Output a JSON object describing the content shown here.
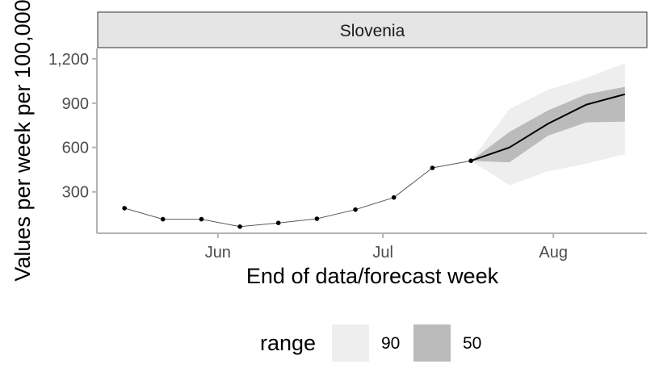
{
  "chart_data": {
    "type": "line",
    "facet": "Slovenia",
    "xlabel": "End of data/forecast week",
    "ylabel": "Values per week per 100,000",
    "x_ticks": [
      {
        "date": "2021-06-01",
        "label": "Jun"
      },
      {
        "date": "2021-07-01",
        "label": "Jul"
      },
      {
        "date": "2021-08-01",
        "label": "Aug"
      }
    ],
    "y_ticks": [
      {
        "value": 300,
        "label": "300"
      },
      {
        "value": 600,
        "label": "600"
      },
      {
        "value": 900,
        "label": "900"
      },
      {
        "value": 1200,
        "label": "1,200"
      }
    ],
    "xlim": [
      "2021-05-10",
      "2021-08-18"
    ],
    "ylim": [
      20,
      1270
    ],
    "grid": false,
    "observed": [
      {
        "date": "2021-05-15",
        "value": 190
      },
      {
        "date": "2021-05-22",
        "value": 115
      },
      {
        "date": "2021-05-29",
        "value": 115
      },
      {
        "date": "2021-06-05",
        "value": 65
      },
      {
        "date": "2021-06-12",
        "value": 90
      },
      {
        "date": "2021-06-19",
        "value": 118
      },
      {
        "date": "2021-06-26",
        "value": 180
      },
      {
        "date": "2021-07-03",
        "value": 262
      },
      {
        "date": "2021-07-10",
        "value": 462
      },
      {
        "date": "2021-07-17",
        "value": 510
      }
    ],
    "forecast": [
      {
        "date": "2021-07-17",
        "median": 510,
        "lo50": 510,
        "hi50": 510,
        "lo90": 510,
        "hi90": 510
      },
      {
        "date": "2021-07-24",
        "median": 600,
        "lo50": 500,
        "hi50": 705,
        "lo90": 345,
        "hi90": 860
      },
      {
        "date": "2021-07-31",
        "median": 760,
        "lo50": 680,
        "hi50": 850,
        "lo90": 440,
        "hi90": 990
      },
      {
        "date": "2021-08-07",
        "median": 890,
        "lo50": 770,
        "hi50": 960,
        "lo90": 490,
        "hi90": 1070
      },
      {
        "date": "2021-08-14",
        "median": 960,
        "lo50": 775,
        "hi50": 1010,
        "lo90": 555,
        "hi90": 1170
      }
    ],
    "legend": {
      "title": "range",
      "position": "bottom",
      "items": [
        {
          "label": "90",
          "color": "#eeeeee"
        },
        {
          "label": "50",
          "color": "#bbbbbb"
        }
      ]
    },
    "colors": {
      "band90": "#eeeeee",
      "band50": "#bbbbbb",
      "forecast_line": "#000000",
      "observed_line": "#595959",
      "point": "#000000",
      "axis": "#b3b3b3",
      "strip_fill": "#e5e5e5",
      "strip_border": "#333333"
    }
  }
}
